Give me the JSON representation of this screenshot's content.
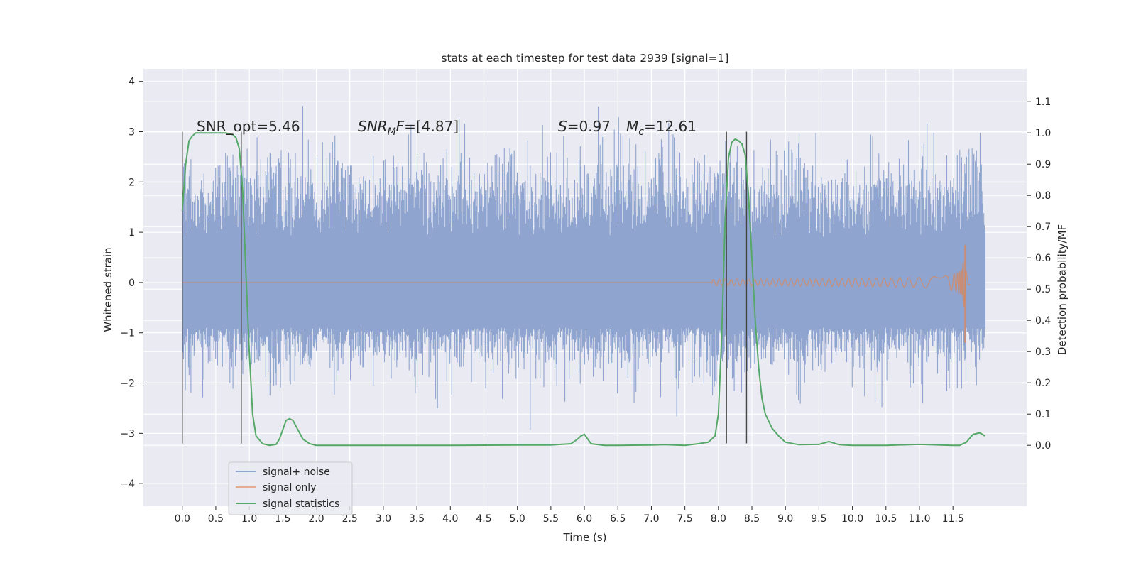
{
  "chart_data": {
    "type": "line",
    "title": "stats at each timestep for test data 2939 [signal=1]",
    "xlabel": "Time (s)",
    "ylabel_left": "Whitened strain",
    "ylabel_right": "Detection probability/MF",
    "xlim": [
      -0.58,
      12.6
    ],
    "ylim_left": [
      -4.45,
      4.25
    ],
    "ylim_right": [
      -0.195,
      1.205
    ],
    "x_ticks": [
      0.0,
      0.5,
      1.0,
      1.5,
      2.0,
      2.5,
      3.0,
      3.5,
      4.0,
      4.5,
      5.0,
      5.5,
      6.0,
      6.5,
      7.0,
      7.5,
      8.0,
      8.5,
      9.0,
      9.5,
      10.0,
      10.5,
      11.0,
      11.5
    ],
    "x_tick_labels": [
      "0.0",
      "0.5",
      "1.0",
      "1.5",
      "2.0",
      "2.5",
      "3.0",
      "3.5",
      "4.0",
      "4.5",
      "5.0",
      "5.5",
      "6.0",
      "6.5",
      "7.0",
      "7.5",
      "8.0",
      "8.5",
      "9.0",
      "9.5",
      "10.0",
      "10.5",
      "11.0",
      "11.5"
    ],
    "y_left_ticks": [
      4,
      3,
      2,
      1,
      0,
      -1,
      -2,
      -3,
      -4
    ],
    "y_left_tick_labels": [
      "4",
      "3",
      "2",
      "1",
      "0",
      "−1",
      "−2",
      "−3",
      "−4"
    ],
    "y_right_ticks": [
      1.1,
      1.0,
      0.9,
      0.8,
      0.7,
      0.6,
      0.5,
      0.4,
      0.3,
      0.2,
      0.1,
      0.0
    ],
    "y_right_tick_labels": [
      "1.1",
      "1.0",
      "0.9",
      "0.8",
      "0.7",
      "0.6",
      "0.5",
      "0.4",
      "0.3",
      "0.2",
      "0.1",
      "0.0"
    ],
    "annotations": {
      "snr_opt": "SNR_opt=5.46",
      "snr_mf_main": "SNR",
      "snr_mf_sub": "M",
      "snr_mf_rest": "F=[4.87]",
      "s_sym": "S",
      "s_val": "=0.97",
      "mc_sym": "M",
      "mc_sub": "c",
      "mc_val": "=12.61"
    },
    "legend": {
      "placement": "lower-left",
      "entries": [
        "signal+ noise",
        "signal only",
        "signal statistics"
      ]
    },
    "grid": true,
    "colors": {
      "noise": "#8fa5cf",
      "signal": "#dd8452",
      "stats": "#55a868",
      "vlines": "#444444",
      "background": "#eaeaf2",
      "grid": "#ffffff"
    },
    "vertical_markers": [
      0.0,
      0.88,
      8.12,
      8.42
    ],
    "series": [
      {
        "name": "signal statistics",
        "axis": "right",
        "x": [
          0.0,
          0.05,
          0.1,
          0.15,
          0.2,
          0.3,
          0.5,
          0.65,
          0.75,
          0.8,
          0.85,
          0.9,
          0.95,
          1.0,
          1.05,
          1.1,
          1.2,
          1.3,
          1.4,
          1.45,
          1.5,
          1.55,
          1.6,
          1.65,
          1.7,
          1.8,
          1.9,
          2.0,
          2.2,
          3.0,
          4.0,
          5.0,
          5.5,
          5.8,
          5.9,
          5.95,
          6.0,
          6.05,
          6.1,
          6.3,
          6.5,
          7.0,
          7.2,
          7.5,
          7.7,
          7.85,
          7.95,
          8.0,
          8.05,
          8.1,
          8.15,
          8.2,
          8.25,
          8.3,
          8.35,
          8.4,
          8.45,
          8.5,
          8.55,
          8.6,
          8.65,
          8.7,
          8.8,
          8.9,
          9.0,
          9.2,
          9.5,
          9.65,
          9.8,
          10.0,
          10.5,
          11.0,
          11.5,
          11.6,
          11.7,
          11.8,
          11.9,
          11.98
        ],
        "y": [
          0.75,
          0.9,
          0.975,
          0.99,
          1.0,
          1.0,
          1.0,
          1.0,
          0.995,
          0.985,
          0.95,
          0.82,
          0.55,
          0.3,
          0.1,
          0.03,
          0.005,
          0.0,
          0.003,
          0.02,
          0.05,
          0.08,
          0.085,
          0.08,
          0.06,
          0.02,
          0.005,
          0.0,
          0.0,
          0.0,
          0.0,
          0.001,
          0.001,
          0.005,
          0.02,
          0.03,
          0.035,
          0.02,
          0.005,
          0.0,
          0.0,
          0.001,
          0.002,
          0.0,
          0.005,
          0.01,
          0.03,
          0.1,
          0.35,
          0.72,
          0.92,
          0.97,
          0.98,
          0.975,
          0.965,
          0.93,
          0.8,
          0.6,
          0.4,
          0.25,
          0.15,
          0.1,
          0.055,
          0.03,
          0.01,
          0.002,
          0.003,
          0.012,
          0.002,
          0.0,
          0.0,
          0.003,
          0.0,
          0.0,
          0.01,
          0.035,
          0.04,
          0.03
        ]
      }
    ]
  }
}
